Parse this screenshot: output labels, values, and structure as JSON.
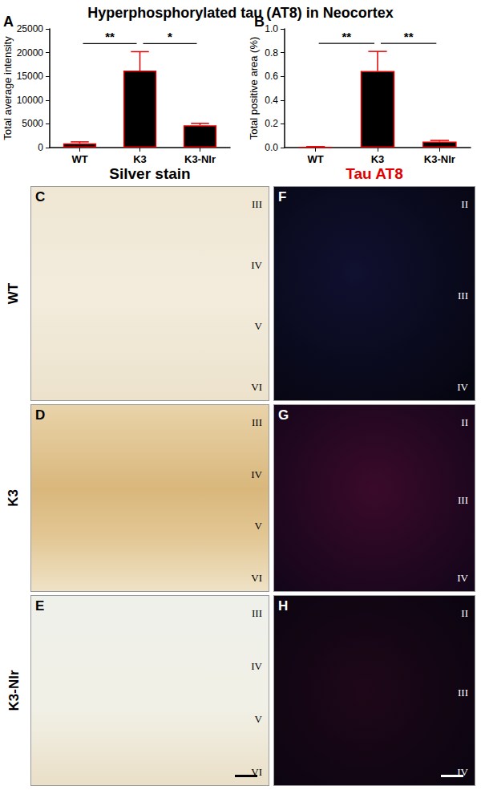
{
  "title": "Hyperphosphorylated tau (AT8) in Neocortex",
  "chart_data": [
    {
      "type": "bar",
      "panel": "A",
      "categories": [
        "WT",
        "K3",
        "K3-NIr"
      ],
      "values": [
        900,
        16200,
        4700
      ],
      "errors": [
        300,
        4000,
        400
      ],
      "color": "#000000",
      "y_label": "Total average intensity",
      "ylim": [
        0,
        25000
      ],
      "yticks": [
        0,
        5000,
        10000,
        15000,
        20000,
        25000
      ],
      "grid": false,
      "significance": [
        {
          "from": "WT",
          "to": "K3",
          "label": "**"
        },
        {
          "from": "K3",
          "to": "K3-NIr",
          "label": "*"
        }
      ]
    },
    {
      "type": "bar",
      "panel": "B",
      "categories": [
        "WT",
        "K3",
        "K3-NIr"
      ],
      "values": [
        0.005,
        0.645,
        0.05
      ],
      "errors": [
        0.003,
        0.165,
        0.01
      ],
      "color": "#000000",
      "y_label": "Total positive area (%)",
      "ylim": [
        0,
        1.0
      ],
      "yticks": [
        {
          "value": 0,
          "label": "0.0"
        },
        0.2,
        0.4,
        0.6,
        0.8,
        {
          "value": 1.0,
          "label": "1.0"
        }
      ],
      "grid": false,
      "significance": [
        {
          "from": "WT",
          "to": "K3",
          "label": "**"
        },
        {
          "from": "K3",
          "to": "K3-NIr",
          "label": "**"
        }
      ]
    }
  ],
  "image_panels": {
    "columns": [
      {
        "title": "Silver stain",
        "style": "silver"
      },
      {
        "title": "Tau AT8",
        "style": "fluorescence"
      }
    ],
    "rows": [
      "WT",
      "K3",
      "K3-NIr"
    ],
    "panels": [
      {
        "letter": "C",
        "row": 0,
        "column": 0,
        "layers": [
          "III",
          "IV",
          "V",
          "VI"
        ]
      },
      {
        "letter": "D",
        "row": 1,
        "column": 0,
        "layers": [
          "III",
          "IV",
          "V",
          "VI"
        ]
      },
      {
        "letter": "E",
        "row": 2,
        "column": 0,
        "layers": [
          "III",
          "IV",
          "V",
          "VI"
        ]
      },
      {
        "letter": "F",
        "row": 0,
        "column": 1,
        "layers": [
          "II",
          "III",
          "IV"
        ]
      },
      {
        "letter": "G",
        "row": 1,
        "column": 1,
        "layers": [
          "II",
          "III",
          "IV"
        ]
      },
      {
        "letter": "H",
        "row": 2,
        "column": 1,
        "layers": [
          "II",
          "III",
          "IV"
        ]
      }
    ]
  }
}
